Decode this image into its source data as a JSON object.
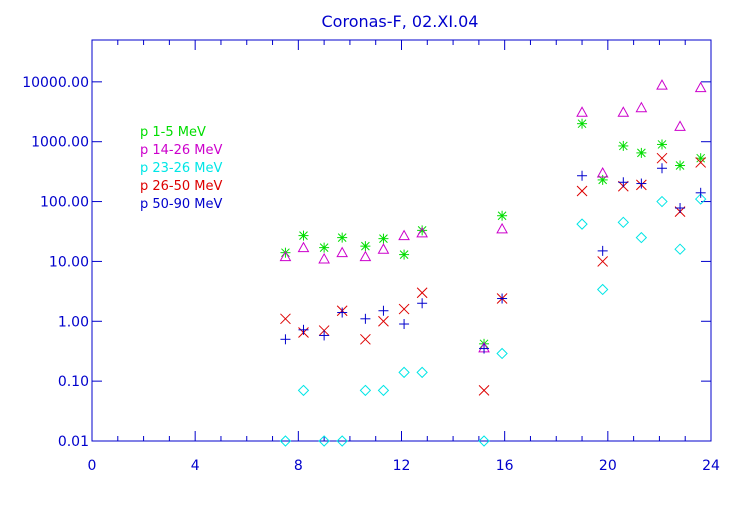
{
  "chart_data": {
    "type": "scatter",
    "title": "Coronas-F, 02.XI.04",
    "xlabel": "",
    "ylabel": "",
    "xlim": [
      0,
      24
    ],
    "ylim": [
      0.01,
      50000
    ],
    "yscale": "log",
    "grid": false,
    "legend_position": "top-left",
    "x_ticks": [
      {
        "value": 0,
        "label": "0"
      },
      {
        "value": 4,
        "label": "4"
      },
      {
        "value": 8,
        "label": "8"
      },
      {
        "value": 12,
        "label": "12"
      },
      {
        "value": 16,
        "label": "16"
      },
      {
        "value": 20,
        "label": "20"
      },
      {
        "value": 24,
        "label": "24"
      }
    ],
    "y_ticks": [
      {
        "value": 0.01,
        "label": "0.01"
      },
      {
        "value": 0.1,
        "label": "0.10"
      },
      {
        "value": 1,
        "label": "1.00"
      },
      {
        "value": 10,
        "label": "10.00"
      },
      {
        "value": 100,
        "label": "100.00"
      },
      {
        "value": 1000,
        "label": "1000.00"
      },
      {
        "value": 10000,
        "label": "10000.00"
      }
    ],
    "axis_color": "#0000cc",
    "series": [
      {
        "name": "p 1-5 MeV",
        "color": "#00dd00",
        "marker": "asterisk",
        "points": [
          [
            7.5,
            14
          ],
          [
            8.2,
            27
          ],
          [
            9.0,
            17
          ],
          [
            9.7,
            25
          ],
          [
            10.6,
            18
          ],
          [
            11.3,
            24
          ],
          [
            12.1,
            13
          ],
          [
            12.8,
            33
          ],
          [
            15.2,
            0.42
          ],
          [
            15.9,
            58
          ],
          [
            19.0,
            2000
          ],
          [
            19.8,
            230
          ],
          [
            20.6,
            850
          ],
          [
            21.3,
            650
          ],
          [
            22.1,
            900
          ],
          [
            22.8,
            400
          ],
          [
            23.6,
            530
          ]
        ]
      },
      {
        "name": "p 14-26 MeV",
        "color": "#cc00cc",
        "marker": "triangle",
        "points": [
          [
            7.5,
            12
          ],
          [
            8.2,
            17
          ],
          [
            9.0,
            11
          ],
          [
            9.7,
            14
          ],
          [
            10.6,
            12
          ],
          [
            11.3,
            16
          ],
          [
            12.1,
            27
          ],
          [
            12.8,
            30
          ],
          [
            15.2,
            0.36
          ],
          [
            15.9,
            35
          ],
          [
            19.0,
            3100
          ],
          [
            19.8,
            300
          ],
          [
            20.6,
            3100
          ],
          [
            21.3,
            3700
          ],
          [
            22.1,
            8800
          ],
          [
            22.8,
            1800
          ],
          [
            23.6,
            8000
          ]
        ]
      },
      {
        "name": "p 23-26 MeV",
        "color": "#00e6e6",
        "marker": "diamond",
        "points": [
          [
            7.5,
            0.01
          ],
          [
            8.2,
            0.07
          ],
          [
            9.0,
            0.01
          ],
          [
            9.7,
            0.01
          ],
          [
            10.6,
            0.07
          ],
          [
            11.3,
            0.07
          ],
          [
            12.1,
            0.14
          ],
          [
            12.8,
            0.14
          ],
          [
            15.2,
            0.01
          ],
          [
            15.9,
            0.29
          ],
          [
            19.0,
            42
          ],
          [
            19.8,
            3.4
          ],
          [
            20.6,
            45
          ],
          [
            21.3,
            25
          ],
          [
            22.1,
            100
          ],
          [
            22.8,
            16
          ],
          [
            23.6,
            110
          ]
        ]
      },
      {
        "name": "p 26-50 MeV",
        "color": "#dd0000",
        "marker": "cross",
        "points": [
          [
            7.5,
            1.1
          ],
          [
            8.2,
            0.65
          ],
          [
            9.0,
            0.7
          ],
          [
            9.7,
            1.5
          ],
          [
            10.6,
            0.5
          ],
          [
            11.3,
            1.0
          ],
          [
            12.1,
            1.6
          ],
          [
            12.8,
            3.0
          ],
          [
            15.2,
            0.07
          ],
          [
            15.9,
            2.4
          ],
          [
            19.0,
            150
          ],
          [
            19.8,
            10
          ],
          [
            20.6,
            180
          ],
          [
            21.3,
            190
          ],
          [
            22.1,
            530
          ],
          [
            22.8,
            68
          ],
          [
            23.6,
            450
          ]
        ]
      },
      {
        "name": "p 50-90 MeV",
        "color": "#0000cc",
        "marker": "plus",
        "points": [
          [
            7.5,
            0.5
          ],
          [
            8.2,
            0.72
          ],
          [
            9.0,
            0.58
          ],
          [
            9.7,
            1.4
          ],
          [
            10.6,
            1.1
          ],
          [
            11.3,
            1.5
          ],
          [
            12.1,
            0.9
          ],
          [
            12.8,
            2.0
          ],
          [
            15.2,
            0.35
          ],
          [
            15.9,
            2.4
          ],
          [
            19.0,
            270
          ],
          [
            19.8,
            15
          ],
          [
            20.6,
            210
          ],
          [
            21.3,
            200
          ],
          [
            22.1,
            360
          ],
          [
            22.8,
            78
          ],
          [
            23.6,
            140
          ]
        ]
      }
    ]
  }
}
